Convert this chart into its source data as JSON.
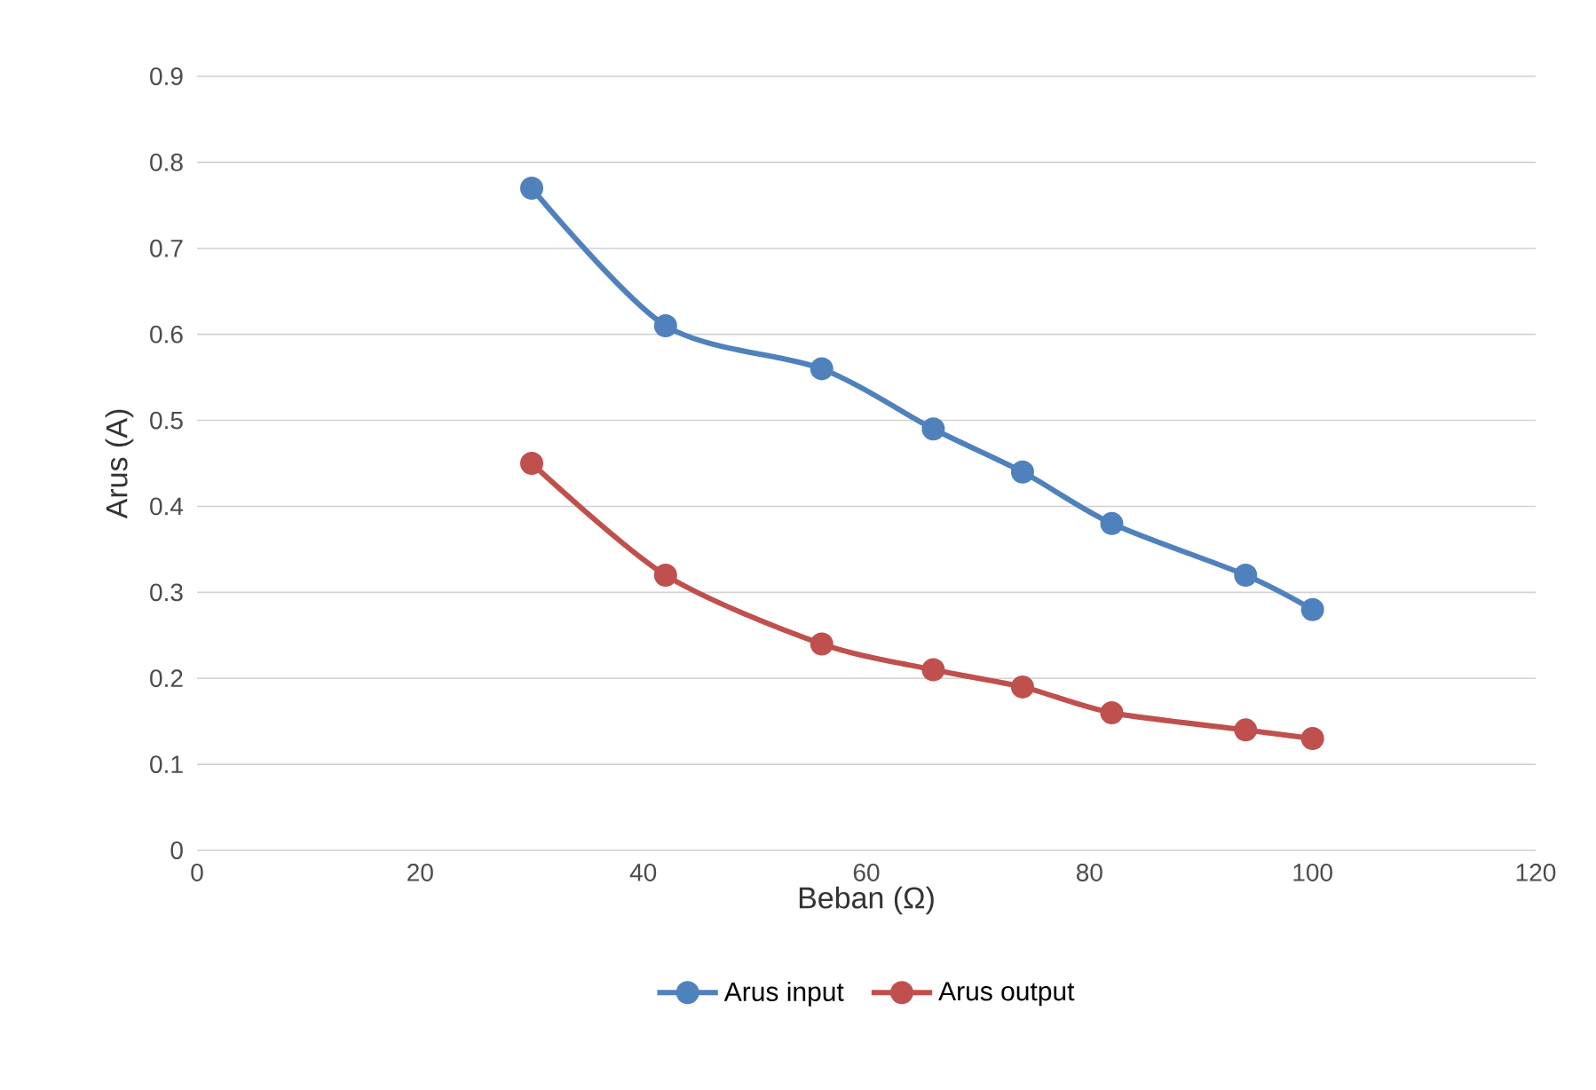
{
  "chart_data": {
    "type": "line",
    "xlabel": "Beban (Ω)",
    "ylabel": "Arus (A)",
    "x": [
      30,
      42,
      56,
      66,
      74,
      82,
      94,
      100
    ],
    "series": [
      {
        "name": "Arus input",
        "color": "#4f81bd",
        "values": [
          0.77,
          0.61,
          0.56,
          0.49,
          0.44,
          0.38,
          0.32,
          0.28
        ]
      },
      {
        "name": "Arus output",
        "color": "#c0504d",
        "values": [
          0.45,
          0.32,
          0.24,
          0.21,
          0.19,
          0.16,
          0.14,
          0.13
        ]
      }
    ],
    "xlim": [
      0,
      120
    ],
    "xticks": [
      0,
      20,
      40,
      60,
      80,
      100,
      120
    ],
    "ylim": [
      0,
      0.9
    ],
    "yticks": [
      0,
      0.1,
      0.2,
      0.3,
      0.4,
      0.5,
      0.6,
      0.7,
      0.8,
      0.9
    ],
    "grid": "y",
    "legend": "bottom",
    "marker": "circle",
    "line_style": "solid"
  }
}
